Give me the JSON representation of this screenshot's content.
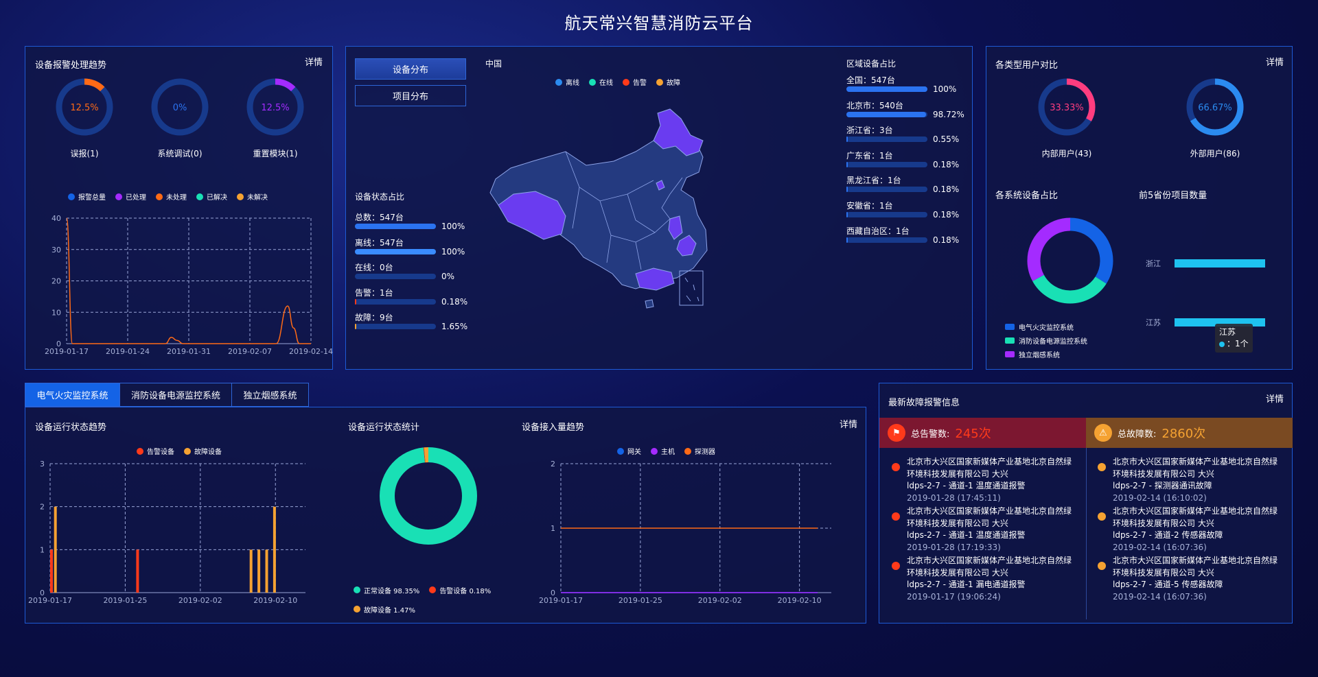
{
  "page_title": "航天常兴智慧消防云平台",
  "common": {
    "detail_label": "详情"
  },
  "alarm_trend": {
    "title": "设备报警处理趋势",
    "gauges": [
      {
        "label": "误报(1)",
        "percent_text": "12.5%",
        "value": 0.125,
        "color": "#ff6a16"
      },
      {
        "label": "系统调试(0)",
        "percent_text": "0%",
        "value": 0,
        "color": "#2b73f0"
      },
      {
        "label": "重置模块(1)",
        "percent_text": "12.5%",
        "value": 0.125,
        "color": "#a42bff"
      }
    ],
    "legend": [
      {
        "name": "报警总量",
        "color": "#1463e6"
      },
      {
        "name": "已处理",
        "color": "#a42bff"
      },
      {
        "name": "未处理",
        "color": "#ff6a16"
      },
      {
        "name": "已解决",
        "color": "#19e0b5"
      },
      {
        "name": "未解决",
        "color": "#f5a232"
      }
    ]
  },
  "center": {
    "buttons": {
      "device": "设备分布",
      "project": "项目分布"
    },
    "map_title": "中国",
    "map_legend": [
      {
        "name": "离线",
        "color": "#2b8bf0"
      },
      {
        "name": "在线",
        "color": "#19e0b5"
      },
      {
        "name": "告警",
        "color": "#ff3a1a"
      },
      {
        "name": "故障",
        "color": "#f5a232"
      }
    ],
    "status_title": "设备状态占比",
    "status_items": [
      {
        "label": "总数：547台",
        "pct": "100%",
        "value": 1.0,
        "color": "#2b73f0"
      },
      {
        "label": "离线：547台",
        "pct": "100%",
        "value": 1.0,
        "color": "#3a8cff"
      },
      {
        "label": "在线：0台",
        "pct": "0%",
        "value": 0,
        "color": "#19e0b5"
      },
      {
        "label": "告警：1台",
        "pct": "0.18%",
        "value": 0.0018,
        "color": "#ff3a1a"
      },
      {
        "label": "故障：9台",
        "pct": "1.65%",
        "value": 0.0165,
        "color": "#f5a232"
      }
    ],
    "region_title": "区域设备占比",
    "region_items": [
      {
        "label": "全国：547台",
        "pct": "100%",
        "value": 1.0
      },
      {
        "label": "北京市：540台",
        "pct": "98.72%",
        "value": 0.9872
      },
      {
        "label": "浙江省：3台",
        "pct": "0.55%",
        "value": 0.0055
      },
      {
        "label": "广东省：1台",
        "pct": "0.18%",
        "value": 0.0018
      },
      {
        "label": "黑龙江省：1台",
        "pct": "0.18%",
        "value": 0.0018
      },
      {
        "label": "安徽省：1台",
        "pct": "0.18%",
        "value": 0.0018
      },
      {
        "label": "西藏自治区：1台",
        "pct": "0.18%",
        "value": 0.0018
      }
    ]
  },
  "users": {
    "title": "各类型用户对比",
    "gauges": [
      {
        "label": "内部用户(43)",
        "percent_text": "33.33%",
        "value": 0.3333,
        "color": "#ff3d7f"
      },
      {
        "label": "外部用户(86)",
        "percent_text": "66.67%",
        "value": 0.6667,
        "color": "#2b8bf0"
      }
    ],
    "system_title": "各系统设备占比",
    "system_legend": [
      {
        "name": "电气火灾监控系统",
        "color": "#1463e6"
      },
      {
        "name": "消防设备电源监控系统",
        "color": "#19e0b5"
      },
      {
        "name": "独立烟感系统",
        "color": "#a42bff"
      }
    ],
    "top5_title": "前5省份项目数量",
    "top5": [
      {
        "name": "浙江",
        "value": 1
      },
      {
        "name": "江苏",
        "value": 1
      }
    ],
    "tooltip": {
      "name": "江苏",
      "value": "：1个"
    }
  },
  "bottom": {
    "tabs": [
      "电气火灾监控系统",
      "消防设备电源监控系统",
      "独立烟感系统"
    ],
    "run_trend_title": "设备运行状态趋势",
    "run_stat_title": "设备运行状态统计",
    "access_title": "设备接入量趋势",
    "run_legend": [
      {
        "name": "告警设备",
        "color": "#ff3a1a"
      },
      {
        "name": "故障设备",
        "color": "#f5a232"
      }
    ],
    "donut_legend": [
      {
        "name": "正常设备 98.35%",
        "color": "#19e0b5"
      },
      {
        "name": "告警设备 0.18%",
        "color": "#ff3a1a"
      },
      {
        "name": "故障设备 1.47%",
        "color": "#f5a232"
      }
    ],
    "access_legend": [
      {
        "name": "网关",
        "color": "#1463e6"
      },
      {
        "name": "主机",
        "color": "#a42bff"
      },
      {
        "name": "探测器",
        "color": "#ff6a16"
      }
    ]
  },
  "alarms": {
    "title": "最新故障报警信息",
    "total_alarm_label": "总告警数:",
    "total_alarm_value": "245次",
    "total_fault_label": "总故障数:",
    "total_fault_value": "2860次",
    "alarm_list": [
      {
        "line1": "北京市大兴区国家新媒体产业基地北京自然绿",
        "line2": "环境科技发展有限公司 大兴",
        "line3": "ldps-2-7 - 通道-1 温度通道报警",
        "time": "2019-01-28 (17:45:11)"
      },
      {
        "line1": "北京市大兴区国家新媒体产业基地北京自然绿",
        "line2": "环境科技发展有限公司 大兴",
        "line3": "ldps-2-7 - 通道-1 温度通道报警",
        "time": "2019-01-28 (17:19:33)"
      },
      {
        "line1": "北京市大兴区国家新媒体产业基地北京自然绿",
        "line2": "环境科技发展有限公司 大兴",
        "line3": "ldps-2-7 - 通道-1 漏电通道报警",
        "time": "2019-01-17 (19:06:24)"
      }
    ],
    "fault_list": [
      {
        "line1": "北京市大兴区国家新媒体产业基地北京自然绿",
        "line2": "环境科技发展有限公司 大兴",
        "line3": "ldps-2-7 - 探测器通讯故障",
        "time": "2019-02-14 (16:10:02)"
      },
      {
        "line1": "北京市大兴区国家新媒体产业基地北京自然绿",
        "line2": "环境科技发展有限公司 大兴",
        "line3": "ldps-2-7 - 通道-2 传感器故障",
        "time": "2019-02-14 (16:07:36)"
      },
      {
        "line1": "北京市大兴区国家新媒体产业基地北京自然绿",
        "line2": "环境科技发展有限公司 大兴",
        "line3": "ldps-2-7 - 通道-5 传感器故障",
        "time": "2019-02-14 (16:07:36)"
      }
    ]
  },
  "chart_data": [
    {
      "type": "line",
      "x": [
        "2019-01-17",
        "2019-01-24",
        "2019-01-31",
        "2019-02-07",
        "2019-02-14"
      ],
      "ylim": [
        0,
        40
      ],
      "yticks": [
        0,
        10,
        20,
        30,
        40
      ],
      "grid": true,
      "series": [
        {
          "name": "未处理",
          "points": [
            [
              0,
              40
            ],
            [
              1,
              0
            ],
            [
              17,
              0
            ],
            [
              18,
              2
            ],
            [
              19,
              1
            ],
            [
              20,
              0
            ],
            [
              36,
              0
            ],
            [
              38,
              12
            ],
            [
              39,
              5
            ],
            [
              40,
              0
            ],
            [
              42,
              0
            ]
          ]
        }
      ]
    },
    {
      "type": "bar",
      "x": [
        "2019-01-17",
        "2019-01-25",
        "2019-02-02",
        "2019-02-10"
      ],
      "ylim": [
        0,
        3
      ],
      "yticks": [
        0,
        1,
        2,
        3
      ],
      "grid": true,
      "series": [
        {
          "name": "告警设备",
          "points": [
            [
              0,
              1
            ],
            [
              11,
              1
            ]
          ]
        },
        {
          "name": "故障设备",
          "points": [
            [
              0.5,
              2
            ],
            [
              25.5,
              1
            ],
            [
              26.5,
              1
            ],
            [
              27.5,
              1
            ],
            [
              28.5,
              2
            ]
          ]
        }
      ]
    },
    {
      "type": "pie",
      "categories": [
        "正常设备",
        "告警设备",
        "故障设备"
      ],
      "values": [
        98.35,
        0.18,
        1.47
      ]
    },
    {
      "type": "line",
      "x": [
        "2019-01-17",
        "2019-01-25",
        "2019-02-02",
        "2019-02-10"
      ],
      "ylim": [
        0,
        2
      ],
      "yticks": [
        0,
        1,
        2
      ],
      "grid": true,
      "series": [
        {
          "name": "网关",
          "points": [
            [
              0,
              0
            ],
            [
              28,
              0
            ]
          ]
        },
        {
          "name": "主机",
          "points": [
            [
              0,
              0
            ],
            [
              28,
              0
            ]
          ]
        },
        {
          "name": "探测器",
          "points": [
            [
              0,
              1
            ],
            [
              28,
              1
            ]
          ]
        }
      ]
    },
    {
      "type": "pie",
      "categories": [
        "电气火灾监控系统",
        "消防设备电源监控系统",
        "独立烟感系统"
      ],
      "values": [
        34,
        33,
        33
      ]
    },
    {
      "type": "bar",
      "categories": [
        "浙江",
        "江苏"
      ],
      "values": [
        1,
        1
      ]
    }
  ]
}
